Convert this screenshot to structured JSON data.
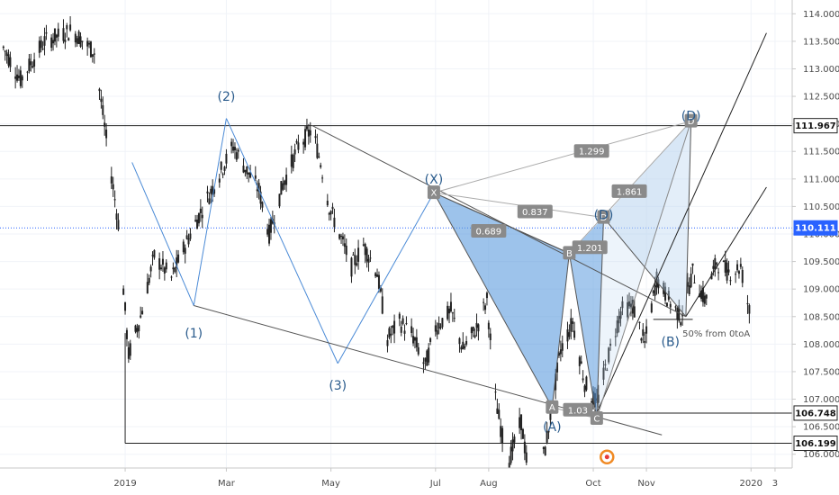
{
  "colors": {
    "background": "#ffffff",
    "grid": "#f0f3f8",
    "candle": "#222222",
    "wave": "#4a8ad6",
    "wave_label": "#2a5b8c",
    "pattern_fill": "#5b9bde",
    "pattern_fill_light": "#b8d4f0",
    "channel": "#555555",
    "level_line": "#222222",
    "blue_dotted": "#2962ff",
    "ratio_bg": "#8a8a8a",
    "point_bg": "#8a8a8a",
    "blue_tag": "#2962ff"
  },
  "chart_data": {
    "type": "line",
    "subtype": "candlestick-price-chart-with-harmonic-pattern",
    "title": "",
    "xlabel": "",
    "ylabel": "",
    "x_ticks": [
      "2019",
      "Mar",
      "May",
      "Jul",
      "Aug",
      "Oct",
      "Nov",
      "2020",
      "3"
    ],
    "y_ticks": [
      "114.000",
      "113.500",
      "113.000",
      "112.500",
      "112.000",
      "111.500",
      "111.000",
      "110.500",
      "110.000",
      "109.500",
      "109.000",
      "108.500",
      "108.000",
      "107.500",
      "107.000",
      "106.500",
      "106.000"
    ],
    "ylim": [
      105.75,
      114.25
    ],
    "x_range": [
      "2018-10-20",
      "2020-01-25"
    ],
    "grid": true,
    "price_levels": [
      {
        "label": "111.967",
        "value": 111.967,
        "style": "solid",
        "tag": "white"
      },
      {
        "label": "110.111",
        "value": 110.111,
        "style": "dotted",
        "tag": "blue"
      },
      {
        "label": "106.748",
        "value": 106.748,
        "style": "solid",
        "tag": "white"
      },
      {
        "label": "106.199",
        "value": 106.199,
        "style": "solid",
        "tag": "white"
      }
    ],
    "series": [
      {
        "points": [
          [
            "2018-10-20",
            113.5
          ],
          [
            "2018-11-01",
            112.8
          ],
          [
            "2018-11-15",
            113.5
          ],
          [
            "2018-12-01",
            113.7
          ],
          [
            "2018-12-14",
            113.3
          ],
          [
            "2018-12-22",
            111.5
          ],
          [
            "2018-12-28",
            110.2
          ],
          [
            "2019-01-03",
            107.8
          ],
          [
            "2019-01-10",
            108.5
          ],
          [
            "2019-01-18",
            109.6
          ],
          [
            "2019-01-28",
            109.2
          ],
          [
            "2019-02-05",
            109.8
          ],
          [
            "2019-02-14",
            110.4
          ],
          [
            "2019-02-22",
            110.9
          ],
          [
            "2019-03-05",
            111.6
          ],
          [
            "2019-03-12",
            111.2
          ],
          [
            "2019-03-20",
            110.8
          ],
          [
            "2019-03-26",
            110.0
          ],
          [
            "2019-04-03",
            110.9
          ],
          [
            "2019-04-12",
            111.6
          ],
          [
            "2019-04-20",
            111.9
          ],
          [
            "2019-04-25",
            111.3
          ],
          [
            "2019-04-30",
            110.5
          ],
          [
            "2019-05-06",
            110.0
          ],
          [
            "2019-05-13",
            109.4
          ],
          [
            "2019-05-20",
            109.8
          ],
          [
            "2019-05-28",
            109.3
          ],
          [
            "2019-06-03",
            108.1
          ],
          [
            "2019-06-10",
            108.4
          ],
          [
            "2019-06-17",
            108.2
          ],
          [
            "2019-06-25",
            107.6
          ],
          [
            "2019-07-01",
            108.3
          ],
          [
            "2019-07-10",
            108.6
          ],
          [
            "2019-07-17",
            107.9
          ],
          [
            "2019-07-25",
            108.3
          ],
          [
            "2019-07-31",
            108.8
          ],
          [
            "2019-08-05",
            107.0
          ],
          [
            "2019-08-12",
            105.8
          ],
          [
            "2019-08-20",
            106.6
          ],
          [
            "2019-08-26",
            105.2
          ],
          [
            "2019-09-03",
            106.1
          ],
          [
            "2019-09-12",
            107.9
          ],
          [
            "2019-09-19",
            108.4
          ],
          [
            "2019-09-26",
            107.3
          ],
          [
            "2019-10-03",
            106.9
          ],
          [
            "2019-10-10",
            107.8
          ],
          [
            "2019-10-17",
            108.6
          ],
          [
            "2019-10-24",
            108.7
          ],
          [
            "2019-10-31",
            108.0
          ],
          [
            "2019-11-07",
            109.2
          ],
          [
            "2019-11-14",
            108.8
          ],
          [
            "2019-11-21",
            108.5
          ],
          [
            "2019-11-28",
            109.3
          ],
          [
            "2019-12-05",
            108.8
          ],
          [
            "2019-12-12",
            109.5
          ],
          [
            "2019-12-19",
            109.3
          ],
          [
            "2019-12-26",
            109.4
          ],
          [
            "2019-12-31",
            108.6
          ]
        ]
      }
    ],
    "wave_labels": [
      {
        "label": "(1)",
        "date": "2019-02-10",
        "value": 108.2
      },
      {
        "label": "(2)",
        "date": "2019-03-01",
        "value": 112.5
      },
      {
        "label": "(3)",
        "date": "2019-05-05",
        "value": 107.25
      },
      {
        "label": "(X)",
        "date": "2019-06-30",
        "value": 111.0
      },
      {
        "label": "(D)",
        "date": "2019-10-07",
        "value": 110.35
      },
      {
        "label": "(A)",
        "date": "2019-09-07",
        "value": 106.5
      },
      {
        "label": "(B)",
        "date": "2019-11-15",
        "value": 108.05
      },
      {
        "label": "(D)",
        "date": "2019-11-27",
        "value": 112.15
      }
    ],
    "pattern_points": [
      {
        "label": "X",
        "date": "2019-06-30",
        "value": 110.75
      },
      {
        "label": "A",
        "date": "2019-09-07",
        "value": 106.85
      },
      {
        "label": "B",
        "date": "2019-09-17",
        "value": 109.65
      },
      {
        "label": "C",
        "date": "2019-10-03",
        "value": 106.65
      },
      {
        "label": "D",
        "date": "2019-10-07",
        "value": 110.3
      },
      {
        "label": "D",
        "date": "2019-11-27",
        "value": 112.05
      }
    ],
    "ratios": [
      {
        "label": "1.299",
        "date": "2019-09-30",
        "value": 111.5
      },
      {
        "label": "0.837",
        "date": "2019-08-28",
        "value": 110.4
      },
      {
        "label": "0.689",
        "date": "2019-08-01",
        "value": 110.05
      },
      {
        "label": "1.861",
        "date": "2019-10-22",
        "value": 110.77
      },
      {
        "label": "1.201",
        "date": "2019-09-29",
        "value": 109.75
      },
      {
        "label": "1.03",
        "date": "2019-09-22",
        "value": 106.8
      }
    ],
    "annotation": {
      "text": "50% from 0toA",
      "date": "2019-11-22",
      "value": 108.2
    }
  }
}
